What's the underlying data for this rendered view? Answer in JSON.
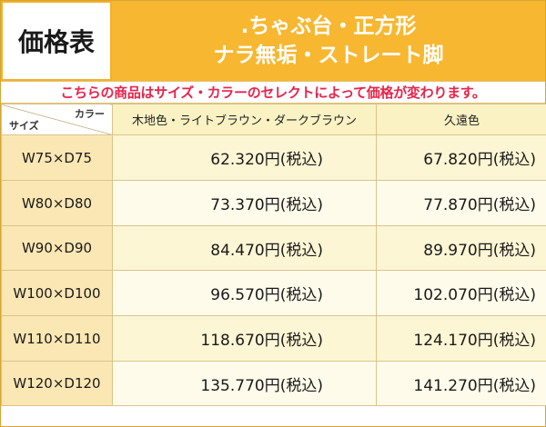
{
  "title": "価格表",
  "product": {
    "line1": ".ちゃぶ台・正方形",
    "line2": "ナラ無垢・ストレート脚"
  },
  "notice": "こちらの商品はサイズ・カラーのセレクトによって価格が変わります。",
  "table": {
    "corner_color_label": "カラー",
    "corner_size_label": "サイズ",
    "columns": [
      "木地色・ライトブラウン・ダークブラウン",
      "久遠色"
    ],
    "rows": [
      {
        "size": "W75×D75",
        "prices": [
          "62.320円(税込)",
          "67.820円(税込)"
        ]
      },
      {
        "size": "W80×D80",
        "prices": [
          "73.370円(税込)",
          "77.870円(税込)"
        ]
      },
      {
        "size": "W90×D90",
        "prices": [
          "84.470円(税込)",
          "89.970円(税込)"
        ]
      },
      {
        "size": "W100×D100",
        "prices": [
          "96.570円(税込)",
          "102.070円(税込)"
        ]
      },
      {
        "size": "W110×D110",
        "prices": [
          "118.670円(税込)",
          "124.170円(税込)"
        ]
      },
      {
        "size": "W120×D120",
        "prices": [
          "135.770円(税込)",
          "141.270円(税込)"
        ]
      }
    ]
  },
  "colors": {
    "accent": "#f8b731",
    "notice_text": "#e8234a",
    "size_cell_bg": "#fbe7b4",
    "price_cell_bg": "#fdf6d4"
  }
}
